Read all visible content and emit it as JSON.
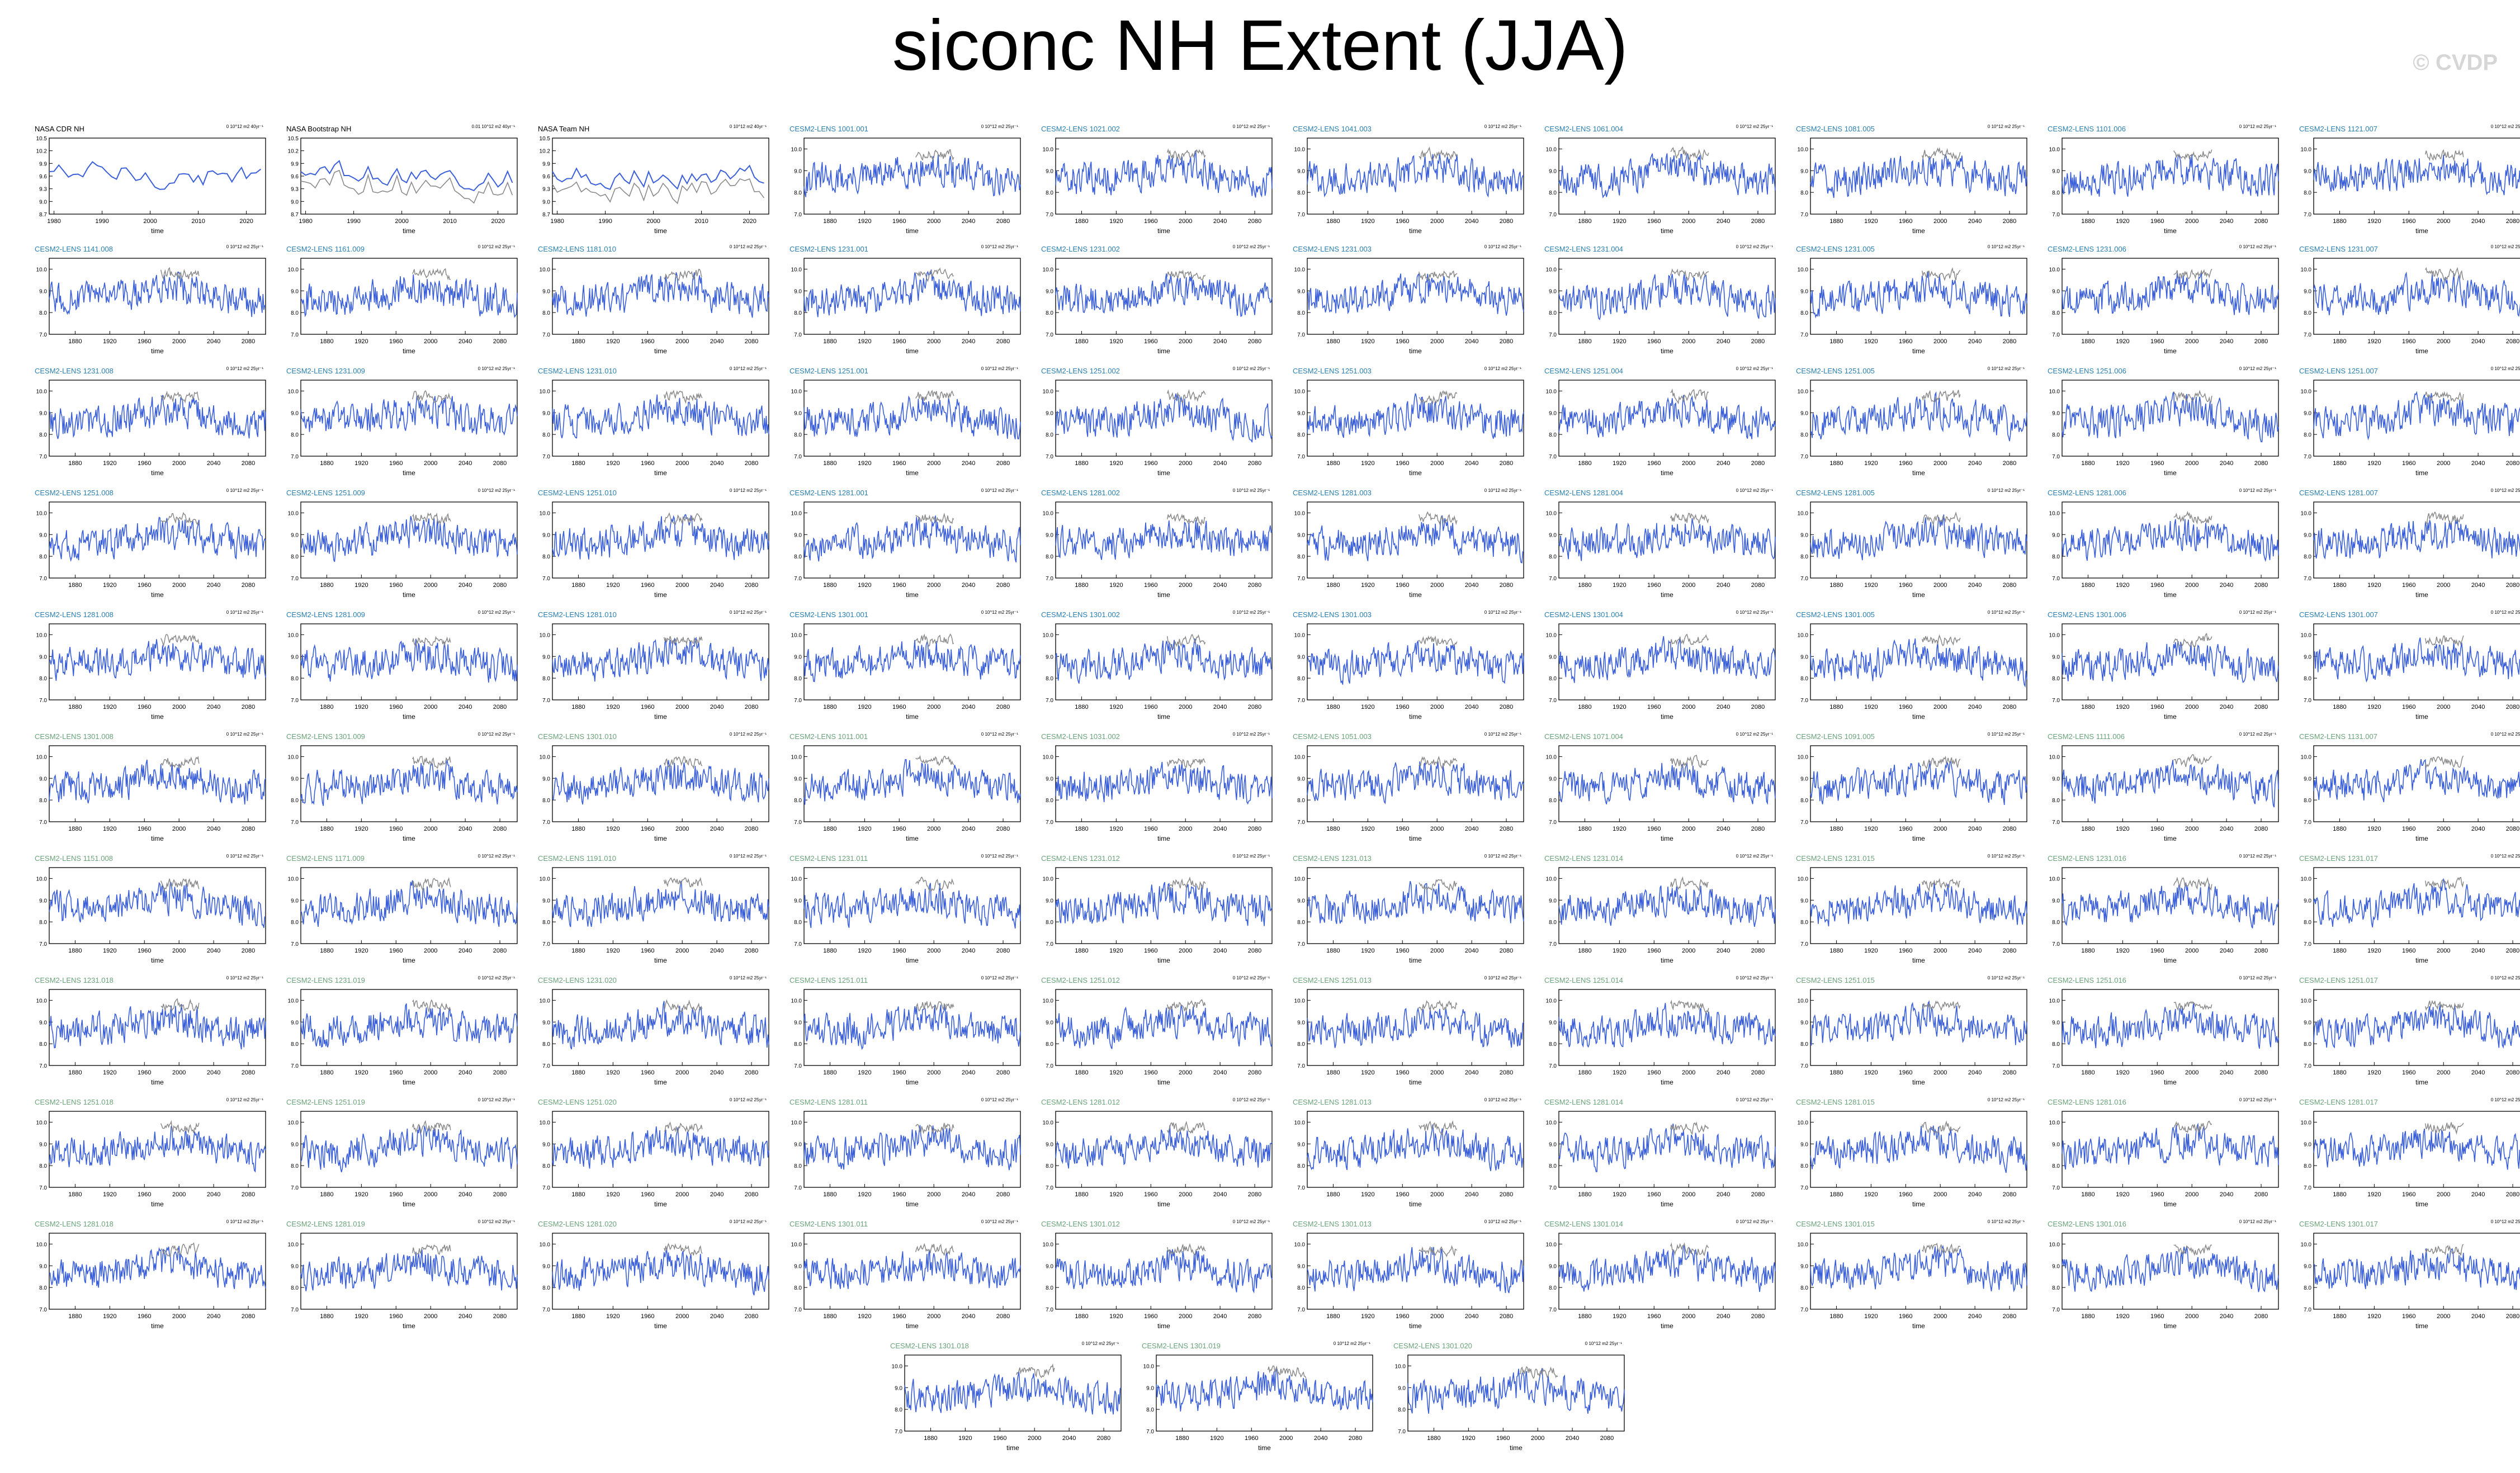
{
  "title": "siconc NH Extent (JJA)",
  "watermark": "© CVDP",
  "colors": {
    "member": "#3a5fd9",
    "obs": "#8a8a8a",
    "obs_line": "#3a5fd9",
    "title_lens1": "#2a7fb0",
    "title_lens2": "#6aa37a"
  },
  "chart_data": {
    "type": "line",
    "xlabel": "time",
    "obs_panels": [
      {
        "title": "NASA CDR NH",
        "units": "0 10^12 m2 40yr⁻¹",
        "xlim": [
          1979,
          2024
        ],
        "ylim": [
          8.7,
          10.5
        ],
        "xticks": [
          1980,
          1990,
          2000,
          2010,
          2020
        ],
        "yticks": [
          8.7,
          9.0,
          9.3,
          9.6,
          9.9,
          10.2,
          10.5
        ]
      },
      {
        "title": "NASA Bootstrap NH",
        "units": "0.01 10^12 m2 40yr⁻¹",
        "xlim": [
          1979,
          2024
        ],
        "ylim": [
          8.7,
          10.5
        ],
        "xticks": [
          1980,
          1990,
          2000,
          2010,
          2020
        ],
        "yticks": [
          8.7,
          9.0,
          9.3,
          9.6,
          9.9,
          10.2,
          10.5
        ]
      },
      {
        "title": "NASA Team NH",
        "units": "0 10^12 m2 40yr⁻¹",
        "xlim": [
          1979,
          2024
        ],
        "ylim": [
          8.7,
          10.5
        ],
        "xticks": [
          1980,
          1990,
          2000,
          2010,
          2020
        ],
        "yticks": [
          8.7,
          9.0,
          9.3,
          9.6,
          9.9,
          10.2,
          10.5
        ]
      }
    ],
    "member_common": {
      "units": "0 10^12 m2 25yr⁻¹",
      "xlim": [
        1850,
        2100
      ],
      "ylim": [
        7.0,
        10.5
      ],
      "xticks": [
        1880,
        1920,
        1960,
        2000,
        2040,
        2080
      ],
      "yticks": [
        7.0,
        8.0,
        9.0,
        10.0
      ]
    },
    "member_panels": [
      "CESM2-LENS 1001.001",
      "CESM2-LENS 1021.002",
      "CESM2-LENS 1041.003",
      "CESM2-LENS 1061.004",
      "CESM2-LENS 1081.005",
      "CESM2-LENS 1101.006",
      "CESM2-LENS 1121.007",
      "CESM2-LENS 1141.008",
      "CESM2-LENS 1161.009",
      "CESM2-LENS 1181.010",
      "CESM2-LENS 1231.001",
      "CESM2-LENS 1231.002",
      "CESM2-LENS 1231.003",
      "CESM2-LENS 1231.004",
      "CESM2-LENS 1231.005",
      "CESM2-LENS 1231.006",
      "CESM2-LENS 1231.007",
      "CESM2-LENS 1231.008",
      "CESM2-LENS 1231.009",
      "CESM2-LENS 1231.010",
      "CESM2-LENS 1251.001",
      "CESM2-LENS 1251.002",
      "CESM2-LENS 1251.003",
      "CESM2-LENS 1251.004",
      "CESM2-LENS 1251.005",
      "CESM2-LENS 1251.006",
      "CESM2-LENS 1251.007",
      "CESM2-LENS 1251.008",
      "CESM2-LENS 1251.009",
      "CESM2-LENS 1251.010",
      "CESM2-LENS 1281.001",
      "CESM2-LENS 1281.002",
      "CESM2-LENS 1281.003",
      "CESM2-LENS 1281.004",
      "CESM2-LENS 1281.005",
      "CESM2-LENS 1281.006",
      "CESM2-LENS 1281.007",
      "CESM2-LENS 1281.008",
      "CESM2-LENS 1281.009",
      "CESM2-LENS 1281.010",
      "CESM2-LENS 1301.001",
      "CESM2-LENS 1301.002",
      "CESM2-LENS 1301.003",
      "CESM2-LENS 1301.004",
      "CESM2-LENS 1301.005",
      "CESM2-LENS 1301.006",
      "CESM2-LENS 1301.007",
      "CESM2-LENS 1301.008",
      "CESM2-LENS 1301.009",
      "CESM2-LENS 1301.010",
      "CESM2-LENS 1011.001",
      "CESM2-LENS 1031.002",
      "CESM2-LENS 1051.003",
      "CESM2-LENS 1071.004",
      "CESM2-LENS 1091.005",
      "CESM2-LENS 1111.006",
      "CESM2-LENS 1131.007",
      "CESM2-LENS 1151.008",
      "CESM2-LENS 1171.009",
      "CESM2-LENS 1191.010",
      "CESM2-LENS 1231.011",
      "CESM2-LENS 1231.012",
      "CESM2-LENS 1231.013",
      "CESM2-LENS 1231.014",
      "CESM2-LENS 1231.015",
      "CESM2-LENS 1231.016",
      "CESM2-LENS 1231.017",
      "CESM2-LENS 1231.018",
      "CESM2-LENS 1231.019",
      "CESM2-LENS 1231.020",
      "CESM2-LENS 1251.011",
      "CESM2-LENS 1251.012",
      "CESM2-LENS 1251.013",
      "CESM2-LENS 1251.014",
      "CESM2-LENS 1251.015",
      "CESM2-LENS 1251.016",
      "CESM2-LENS 1251.017",
      "CESM2-LENS 1251.018",
      "CESM2-LENS 1251.019",
      "CESM2-LENS 1251.020",
      "CESM2-LENS 1281.011",
      "CESM2-LENS 1281.012",
      "CESM2-LENS 1281.013",
      "CESM2-LENS 1281.014",
      "CESM2-LENS 1281.015",
      "CESM2-LENS 1281.016",
      "CESM2-LENS 1281.017",
      "CESM2-LENS 1281.018",
      "CESM2-LENS 1281.019",
      "CESM2-LENS 1281.020",
      "CESM2-LENS 1301.011",
      "CESM2-LENS 1301.012",
      "CESM2-LENS 1301.013",
      "CESM2-LENS 1301.014",
      "CESM2-LENS 1301.015",
      "CESM2-LENS 1301.016",
      "CESM2-LENS 1301.017",
      "CESM2-LENS 1301.018",
      "CESM2-LENS 1301.019",
      "CESM2-LENS 1301.020"
    ]
  }
}
